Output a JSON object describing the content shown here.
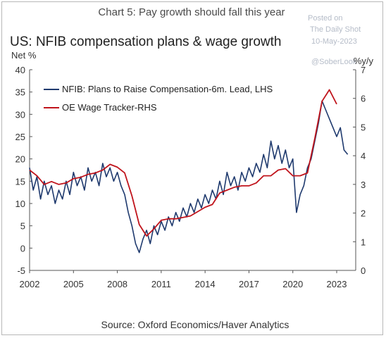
{
  "headline": "Chart 5: Pay growth should fall this year",
  "watermark": {
    "line1": "Posted on",
    "line2": "The Daily Shot",
    "line3": "10-May-2023",
    "line4": "@SoberLook"
  },
  "source": "Source: Oxford Economics/Haver Analytics",
  "colors": {
    "nfib": "#1f3a6e",
    "oe": "#c0141c",
    "axis": "#555555"
  },
  "chart_data": {
    "type": "line",
    "title": "US: NFIB compensation plans & wage growth",
    "ylabel_left": "Net %",
    "ylabel_right": "%y/y",
    "xlim": [
      2002,
      2024.3
    ],
    "ylim_left": [
      -5,
      40
    ],
    "ylim_right": [
      0,
      7
    ],
    "x_ticks": [
      2002,
      2005,
      2008,
      2011,
      2014,
      2017,
      2020,
      2023
    ],
    "y_ticks_left": [
      -5,
      0,
      5,
      10,
      15,
      20,
      25,
      30,
      35,
      40
    ],
    "y_ticks_right": [
      0,
      1,
      2,
      3,
      4,
      5,
      6,
      7
    ],
    "legend_position": "top-left",
    "grid": false,
    "series": [
      {
        "name": "NFIB: Plans to Raise Compensation-6m. Lead, LHS",
        "axis": "left",
        "x": [
          2002,
          2002.25,
          2002.5,
          2002.75,
          2003,
          2003.25,
          2003.5,
          2003.75,
          2004,
          2004.25,
          2004.5,
          2004.75,
          2005,
          2005.25,
          2005.5,
          2005.75,
          2006,
          2006.25,
          2006.5,
          2006.75,
          2007,
          2007.25,
          2007.5,
          2007.75,
          2008,
          2008.25,
          2008.5,
          2008.75,
          2009,
          2009.25,
          2009.5,
          2009.75,
          2010,
          2010.25,
          2010.5,
          2010.75,
          2011,
          2011.25,
          2011.5,
          2011.75,
          2012,
          2012.25,
          2012.5,
          2012.75,
          2013,
          2013.25,
          2013.5,
          2013.75,
          2014,
          2014.25,
          2014.5,
          2014.75,
          2015,
          2015.25,
          2015.5,
          2015.75,
          2016,
          2016.25,
          2016.5,
          2016.75,
          2017,
          2017.25,
          2017.5,
          2017.75,
          2018,
          2018.25,
          2018.5,
          2018.75,
          2019,
          2019.25,
          2019.5,
          2019.75,
          2020,
          2020.25,
          2020.5,
          2020.75,
          2021,
          2021.25,
          2021.5,
          2021.75,
          2022,
          2022.25,
          2022.5,
          2022.75,
          2023,
          2023.25,
          2023.5,
          2023.75
        ],
        "values": [
          18,
          13,
          16,
          11,
          15,
          12,
          14,
          10,
          13,
          11,
          15,
          12,
          17,
          14,
          16,
          13,
          18,
          15,
          17,
          14,
          19,
          16,
          18,
          15,
          17,
          14,
          12,
          8,
          5,
          1,
          -1,
          2,
          4,
          1,
          5,
          3,
          6,
          4,
          7,
          5,
          8,
          6,
          9,
          7,
          10,
          8,
          11,
          9,
          12,
          10,
          13,
          11,
          15,
          12,
          17,
          14,
          16,
          13,
          17,
          15,
          18,
          16,
          19,
          17,
          21,
          18,
          24,
          20,
          23,
          19,
          22,
          18,
          20,
          8,
          12,
          14,
          18,
          20,
          24,
          28,
          33,
          31,
          29,
          27,
          25,
          27,
          22,
          21
        ]
      },
      {
        "name": "OE Wage Tracker-RHS",
        "axis": "right",
        "x": [
          2002,
          2002.5,
          2003,
          2003.5,
          2004,
          2004.5,
          2005,
          2005.5,
          2006,
          2006.5,
          2007,
          2007.5,
          2008,
          2008.5,
          2009,
          2009.5,
          2010,
          2010.5,
          2011,
          2011.5,
          2012,
          2012.5,
          2013,
          2013.5,
          2014,
          2014.5,
          2015,
          2015.5,
          2016,
          2016.5,
          2017,
          2017.5,
          2018,
          2018.5,
          2019,
          2019.5,
          2020,
          2020.5,
          2021,
          2021.5,
          2022,
          2022.5,
          2023
        ],
        "values": [
          3.5,
          3.3,
          3.0,
          3.1,
          3.0,
          3.05,
          3.2,
          3.25,
          3.35,
          3.4,
          3.5,
          3.7,
          3.6,
          3.4,
          2.6,
          1.6,
          1.2,
          1.45,
          1.75,
          1.8,
          1.8,
          1.85,
          1.9,
          2.05,
          2.2,
          2.3,
          2.7,
          2.8,
          2.9,
          2.95,
          2.95,
          3.05,
          3.3,
          3.3,
          3.5,
          3.55,
          3.3,
          3.3,
          3.4,
          4.6,
          5.9,
          6.3,
          5.8
        ]
      }
    ]
  }
}
